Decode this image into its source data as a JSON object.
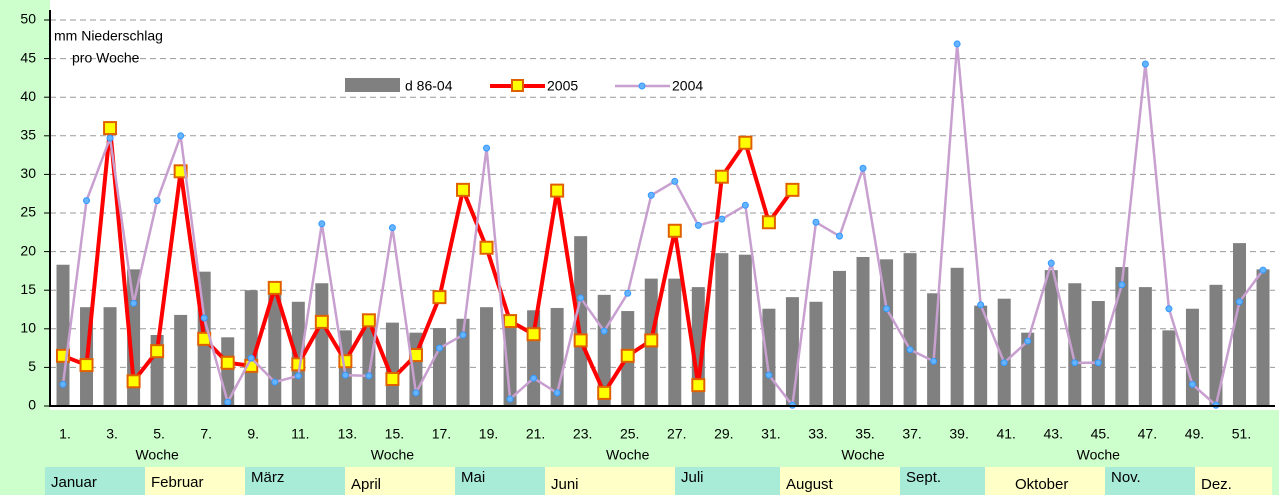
{
  "chart_data": {
    "type": "bar_line",
    "y_label": [
      "mm Niederschlag",
      "pro Woche"
    ],
    "x_label": "Woche",
    "categories": [
      "1.",
      null,
      "3.",
      null,
      "5.",
      null,
      "7.",
      null,
      "9.",
      null,
      "11.",
      null,
      "13.",
      null,
      "15.",
      null,
      "17.",
      null,
      "19.",
      null,
      "21.",
      null,
      "23.",
      null,
      "25.",
      null,
      "27.",
      null,
      "29.",
      null,
      "31.",
      null,
      "33.",
      null,
      "35.",
      null,
      "37.",
      null,
      "39.",
      null,
      "41.",
      null,
      "43.",
      null,
      "45.",
      null,
      "47.",
      null,
      "49.",
      null,
      "51.",
      null
    ],
    "months": [
      "Januar",
      "Februar",
      "März",
      "April",
      "Mai",
      "Juni",
      "Juli",
      "August",
      "Sept.",
      "Oktober",
      "Nov.",
      "Dez."
    ],
    "ylim": [
      0,
      50
    ],
    "yticks": [
      0,
      5,
      10,
      15,
      20,
      25,
      30,
      35,
      40,
      45,
      50
    ],
    "grid": true,
    "series": [
      {
        "name": "d 86-04",
        "kind": "bar",
        "color": "#808080",
        "values": [
          18.3,
          12.8,
          12.8,
          17.7,
          9.2,
          11.8,
          17.4,
          8.9,
          15.0,
          14.8,
          13.5,
          15.9,
          9.8,
          10.2,
          10.8,
          9.5,
          10.1,
          11.3,
          12.8,
          11.4,
          12.4,
          12.7,
          22.0,
          14.4,
          12.3,
          16.5,
          16.5,
          15.4,
          19.8,
          19.6,
          12.6,
          14.1,
          13.5,
          17.5,
          19.3,
          19.0,
          19.8,
          14.6,
          17.9,
          13.0,
          13.9,
          9.5,
          17.6,
          15.9,
          13.6,
          18.0,
          15.4,
          9.8,
          12.6,
          15.7,
          21.1,
          17.7
        ]
      },
      {
        "name": "2005",
        "kind": "line",
        "color": "#ff0000",
        "marker_color": "#ffff00",
        "values": [
          6.5,
          5.3,
          36.0,
          3.2,
          7.1,
          30.4,
          8.7,
          5.6,
          5.2,
          15.3,
          5.4,
          10.9,
          5.8,
          11.1,
          3.5,
          6.6,
          14.1,
          28.0,
          20.5,
          11.0,
          9.3,
          27.9,
          8.5,
          1.7,
          6.5,
          8.5,
          22.7,
          2.7,
          29.7,
          34.1,
          23.8,
          28.0,
          null,
          null,
          null,
          null,
          null,
          null,
          null,
          null,
          null,
          null,
          null,
          null,
          null,
          null,
          null,
          null,
          null,
          null,
          null,
          null
        ]
      },
      {
        "name": "2004",
        "kind": "line",
        "color": "#c8a0d0",
        "marker_color": "#66b3ff",
        "values": [
          2.8,
          26.6,
          34.7,
          13.3,
          26.6,
          35.0,
          11.4,
          0.5,
          6.2,
          3.1,
          3.9,
          23.6,
          4.0,
          3.9,
          23.1,
          1.7,
          7.5,
          9.2,
          33.4,
          0.9,
          3.6,
          1.7,
          14.0,
          9.7,
          14.6,
          27.3,
          29.1,
          23.4,
          24.2,
          26.0,
          4.0,
          0.1,
          23.8,
          22.0,
          30.8,
          12.6,
          7.3,
          5.8,
          46.9,
          13.1,
          5.6,
          8.4,
          18.5,
          5.6,
          5.6,
          15.7,
          44.3,
          12.6,
          2.8,
          0.1,
          13.5,
          17.6
        ]
      }
    ]
  }
}
